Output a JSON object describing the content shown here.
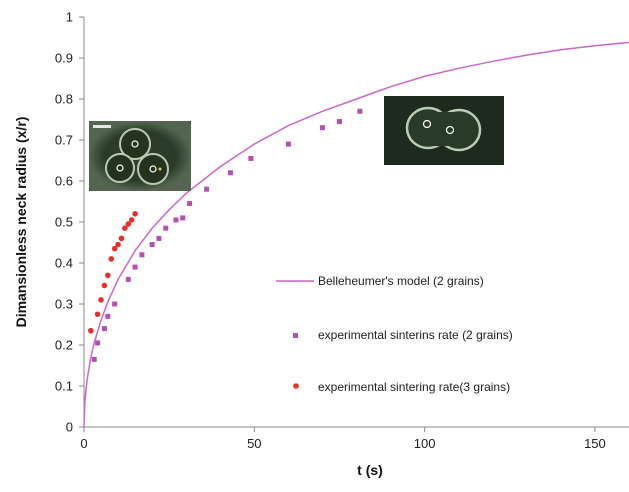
{
  "chart_data": {
    "type": "scatter",
    "xlabel": "t (s)",
    "ylabel": "Dimansionless neck radius (x/r)",
    "xlim": [
      0,
      160
    ],
    "ylim": [
      0,
      1
    ],
    "x_ticks": [
      0,
      50,
      100,
      150
    ],
    "y_ticks": [
      0,
      0.1,
      0.2,
      0.3,
      0.4,
      0.5,
      0.6,
      0.7,
      0.8,
      0.9,
      1
    ],
    "x_tick_labels": [
      "0",
      "50",
      "100",
      "150"
    ],
    "y_tick_labels": [
      "0",
      "0.1",
      "0.2",
      "0.3",
      "0.4",
      "0.5",
      "0.6",
      "0.7",
      "0.8",
      "0.9",
      "1"
    ],
    "grid": false,
    "legend_position": "right-middle",
    "series": [
      {
        "name": "Belleheumer's model (2 grains)",
        "kind": "line",
        "color": "#cc66cc",
        "x": [
          0,
          0.25,
          0.5,
          1,
          2,
          3,
          5,
          7,
          10,
          15,
          20,
          25,
          30,
          40,
          50,
          60,
          70,
          80,
          90,
          100,
          110,
          120,
          130,
          140,
          150,
          160
        ],
        "y": [
          0,
          0.06,
          0.085,
          0.12,
          0.17,
          0.205,
          0.26,
          0.305,
          0.36,
          0.43,
          0.485,
          0.53,
          0.57,
          0.635,
          0.69,
          0.735,
          0.77,
          0.8,
          0.83,
          0.855,
          0.875,
          0.892,
          0.907,
          0.92,
          0.93,
          0.938
        ]
      },
      {
        "name": "experimental sinterins rate (2 grains)",
        "kind": "square",
        "color": "#b54fb5",
        "x": [
          3,
          4,
          6,
          7,
          9,
          13,
          15,
          17,
          20,
          22,
          24,
          27,
          29,
          31,
          36,
          43,
          49,
          60,
          70,
          75,
          81
        ],
        "y": [
          0.165,
          0.205,
          0.24,
          0.27,
          0.3,
          0.36,
          0.39,
          0.42,
          0.445,
          0.46,
          0.485,
          0.505,
          0.51,
          0.545,
          0.58,
          0.62,
          0.655,
          0.69,
          0.73,
          0.745,
          0.77
        ]
      },
      {
        "name": "experimental sintering rate(3 grains)",
        "kind": "circle",
        "color": "#e8302a",
        "x": [
          2,
          4,
          5,
          6,
          7,
          8,
          9,
          10,
          11,
          12,
          13,
          14,
          15
        ],
        "y": [
          0.235,
          0.275,
          0.31,
          0.345,
          0.37,
          0.41,
          0.435,
          0.445,
          0.46,
          0.485,
          0.495,
          0.505,
          0.52
        ]
      }
    ]
  },
  "micrographs": [
    {
      "name": "three-grain-micrograph",
      "caption": ""
    },
    {
      "name": "two-grain-micrograph",
      "caption": ""
    }
  ]
}
